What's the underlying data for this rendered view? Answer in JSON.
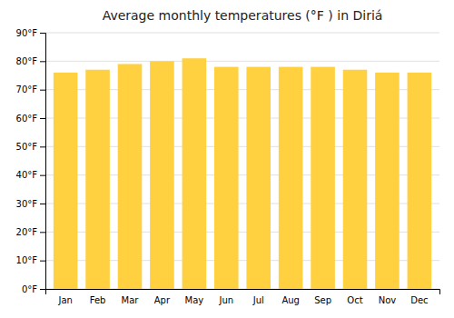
{
  "chart_data": {
    "type": "bar",
    "title": "Average monthly temperatures (°F ) in Diriá",
    "categories": [
      "Jan",
      "Feb",
      "Mar",
      "Apr",
      "May",
      "Jun",
      "Jul",
      "Aug",
      "Sep",
      "Oct",
      "Nov",
      "Dec"
    ],
    "values": [
      76,
      77,
      79,
      80,
      81,
      78,
      78,
      78,
      78,
      77,
      76,
      76
    ],
    "color": "#FFD040",
    "ylim": [
      0,
      90
    ],
    "yticks": [
      {
        "value": 0,
        "label": "0°F"
      },
      {
        "value": 10,
        "label": "10°F"
      },
      {
        "value": 20,
        "label": "20°F"
      },
      {
        "value": 30,
        "label": "30°F"
      },
      {
        "value": 40,
        "label": "40°F"
      },
      {
        "value": 50,
        "label": "50°F"
      },
      {
        "value": 60,
        "label": "60°F"
      },
      {
        "value": 70,
        "label": "70°F"
      },
      {
        "value": 80,
        "label": "80°F"
      },
      {
        "value": 90,
        "label": "90°F"
      }
    ],
    "grid": true
  }
}
